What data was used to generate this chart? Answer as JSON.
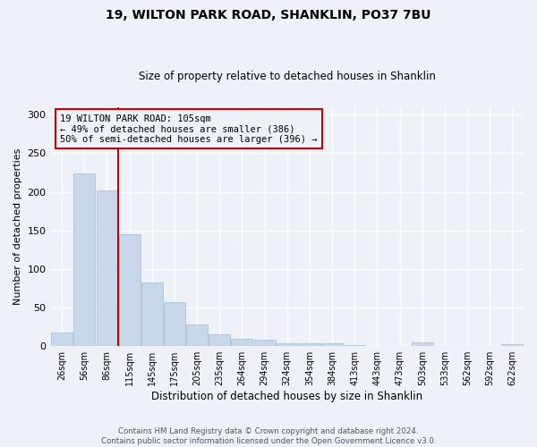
{
  "title": "19, WILTON PARK ROAD, SHANKLIN, PO37 7BU",
  "subtitle": "Size of property relative to detached houses in Shanklin",
  "xlabel": "Distribution of detached houses by size in Shanklin",
  "ylabel": "Number of detached properties",
  "bar_color": "#c8d8ea",
  "bar_edge_color": "#a0bcd4",
  "background_color": "#eef2f8",
  "grid_color": "#ffffff",
  "annotation_box_color": "#cc0000",
  "annotation_text": "19 WILTON PARK ROAD: 105sqm\n← 49% of detached houses are smaller (386)\n50% of semi-detached houses are larger (396) →",
  "vline_color": "#cc0000",
  "tick_labels": [
    "26sqm",
    "56sqm",
    "86sqm",
    "115sqm",
    "145sqm",
    "175sqm",
    "205sqm",
    "235sqm",
    "264sqm",
    "294sqm",
    "324sqm",
    "354sqm",
    "384sqm",
    "413sqm",
    "443sqm",
    "473sqm",
    "503sqm",
    "533sqm",
    "562sqm",
    "592sqm",
    "622sqm"
  ],
  "bar_values": [
    18,
    224,
    202,
    145,
    83,
    57,
    28,
    15,
    10,
    8,
    4,
    4,
    4,
    1,
    0,
    0,
    5,
    0,
    0,
    0,
    3
  ],
  "ylim": [
    0,
    310
  ],
  "yticks": [
    0,
    50,
    100,
    150,
    200,
    250,
    300
  ],
  "figsize": [
    6.0,
    5.0
  ],
  "dpi": 100,
  "footer_text": "Contains HM Land Registry data © Crown copyright and database right 2024.\nContains public sector information licensed under the Open Government Licence v3.0."
}
